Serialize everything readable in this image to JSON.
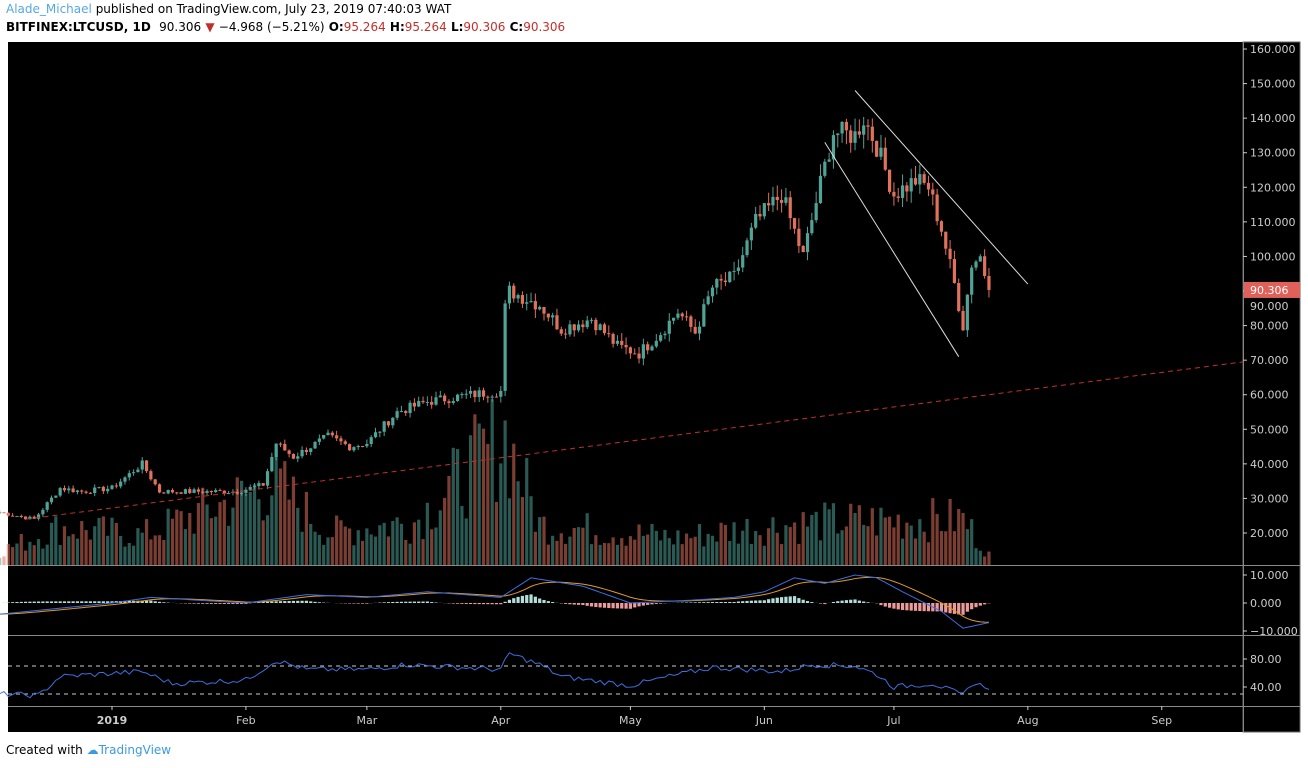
{
  "header": {
    "author": "Alade_Michael",
    "published": "published on TradingView.com, July 23, 2019 07:40:03 WAT",
    "symbol": "BITFINEX:LTCUSD, 1D",
    "last": "90.306",
    "change": "−4.968 (−5.21%)",
    "o_label": "O:",
    "o": "95.264",
    "h_label": "H:",
    "h": "95.264",
    "l_label": "L:",
    "l": "90.306",
    "c_label": "C:",
    "c": "90.306"
  },
  "footer": {
    "created_with": "Created with",
    "brand": "TradingView"
  },
  "colors": {
    "up": "#4fa397",
    "down": "#e0715d",
    "background": "#000000",
    "macd": "#3d6fe0",
    "signal": "#e09a2b",
    "rsi": "#3d6fe0",
    "trend": "#c0302b"
  },
  "chart_data": {
    "type": "candlestick",
    "price_axis": {
      "ticks": [
        "160.000",
        "150.000",
        "140.000",
        "130.000",
        "120.000",
        "110.000",
        "100.000",
        "90.000",
        "80.000",
        "70.000",
        "60.000",
        "50.000",
        "40.000",
        "30.000",
        "20.000"
      ],
      "range": [
        20,
        160
      ],
      "last_label": "90.306"
    },
    "time_axis": {
      "ticks": [
        "2019",
        "Feb",
        "Mar",
        "Apr",
        "May",
        "Jun",
        "Jul",
        "Aug",
        "Sep"
      ]
    },
    "close_keypoints": [
      [
        "2018-12-06",
        26
      ],
      [
        "2018-12-14",
        24
      ],
      [
        "2018-12-20",
        33
      ],
      [
        "2018-12-25",
        32
      ],
      [
        "2019-01-01",
        33
      ],
      [
        "2019-01-08",
        40
      ],
      [
        "2019-01-12",
        32
      ],
      [
        "2019-01-20",
        32
      ],
      [
        "2019-01-30",
        32
      ],
      [
        "2019-02-05",
        34
      ],
      [
        "2019-02-08",
        46
      ],
      [
        "2019-02-12",
        42
      ],
      [
        "2019-02-20",
        48
      ],
      [
        "2019-02-25",
        45
      ],
      [
        "2019-03-01",
        46
      ],
      [
        "2019-03-08",
        55
      ],
      [
        "2019-03-15",
        58
      ],
      [
        "2019-03-20",
        59
      ],
      [
        "2019-03-25",
        60
      ],
      [
        "2019-04-01",
        61
      ],
      [
        "2019-04-02",
        85
      ],
      [
        "2019-04-03",
        90
      ],
      [
        "2019-04-10",
        86
      ],
      [
        "2019-04-15",
        79
      ],
      [
        "2019-04-22",
        82
      ],
      [
        "2019-04-28",
        74
      ],
      [
        "2019-05-03",
        72
      ],
      [
        "2019-05-08",
        78
      ],
      [
        "2019-05-12",
        84
      ],
      [
        "2019-05-16",
        78
      ],
      [
        "2019-05-20",
        91
      ],
      [
        "2019-05-25",
        94
      ],
      [
        "2019-05-30",
        110
      ],
      [
        "2019-06-05",
        118
      ],
      [
        "2019-06-10",
        100
      ],
      [
        "2019-06-14",
        121
      ],
      [
        "2019-06-17",
        136
      ],
      [
        "2019-06-22",
        135
      ],
      [
        "2019-06-24",
        140
      ],
      [
        "2019-06-27",
        132
      ],
      [
        "2019-07-01",
        118
      ],
      [
        "2019-07-06",
        122
      ],
      [
        "2019-07-09",
        120
      ],
      [
        "2019-07-12",
        108
      ],
      [
        "2019-07-15",
        92
      ],
      [
        "2019-07-17",
        80
      ],
      [
        "2019-07-19",
        98
      ],
      [
        "2019-07-21",
        100
      ],
      [
        "2019-07-23",
        90.306
      ]
    ],
    "volume_keypoints": [
      [
        "2018-12-06",
        5
      ],
      [
        "2018-12-20",
        14
      ],
      [
        "2019-01-08",
        11
      ],
      [
        "2019-02-08",
        30
      ],
      [
        "2019-02-20",
        12
      ],
      [
        "2019-03-12",
        16
      ],
      [
        "2019-04-02",
        48
      ],
      [
        "2019-04-10",
        15
      ],
      [
        "2019-05-12",
        10
      ],
      [
        "2019-05-30",
        14
      ],
      [
        "2019-06-17",
        16
      ],
      [
        "2019-07-17",
        17
      ],
      [
        "2019-07-23",
        4
      ]
    ],
    "trendlines": [
      {
        "style": "dashed",
        "from": [
          "2018-12-12",
          24
        ],
        "to": [
          "2019-09-30",
          69.5
        ]
      },
      {
        "style": "solid",
        "from": [
          "2019-06-22",
          148
        ],
        "to": [
          "2019-08-01",
          92
        ]
      },
      {
        "style": "solid",
        "from": [
          "2019-06-15",
          133
        ],
        "to": [
          "2019-07-16",
          71
        ]
      }
    ],
    "macd": {
      "ticks": [
        "10.000",
        "0.000",
        "−10.000"
      ],
      "range": [
        -10,
        10
      ],
      "keypoints": [
        [
          "2018-12-06",
          -4
        ],
        [
          "2019-01-01",
          0
        ],
        [
          "2019-01-10",
          2
        ],
        [
          "2019-02-01",
          0
        ],
        [
          "2019-02-15",
          3
        ],
        [
          "2019-03-01",
          2
        ],
        [
          "2019-03-15",
          4
        ],
        [
          "2019-04-01",
          2
        ],
        [
          "2019-04-08",
          9
        ],
        [
          "2019-04-20",
          6
        ],
        [
          "2019-05-01",
          0
        ],
        [
          "2019-05-15",
          1
        ],
        [
          "2019-05-25",
          2
        ],
        [
          "2019-06-01",
          4
        ],
        [
          "2019-06-08",
          9
        ],
        [
          "2019-06-15",
          7
        ],
        [
          "2019-06-22",
          10
        ],
        [
          "2019-06-27",
          9
        ],
        [
          "2019-07-03",
          4
        ],
        [
          "2019-07-12",
          -3
        ],
        [
          "2019-07-17",
          -9
        ],
        [
          "2019-07-23",
          -7
        ]
      ]
    },
    "rsi": {
      "ticks": [
        "80.00",
        "40.00"
      ],
      "bands": [
        70,
        30
      ],
      "keypoints": [
        [
          "2018-12-06",
          30
        ],
        [
          "2018-12-15",
          28
        ],
        [
          "2018-12-20",
          55
        ],
        [
          "2019-01-08",
          62
        ],
        [
          "2019-01-15",
          45
        ],
        [
          "2019-02-01",
          50
        ],
        [
          "2019-02-08",
          78
        ],
        [
          "2019-02-15",
          65
        ],
        [
          "2019-03-01",
          65
        ],
        [
          "2019-03-10",
          72
        ],
        [
          "2019-04-01",
          65
        ],
        [
          "2019-04-03",
          88
        ],
        [
          "2019-04-10",
          72
        ],
        [
          "2019-04-15",
          55
        ],
        [
          "2019-05-01",
          42
        ],
        [
          "2019-05-10",
          55
        ],
        [
          "2019-05-20",
          68
        ],
        [
          "2019-06-05",
          62
        ],
        [
          "2019-06-12",
          72
        ],
        [
          "2019-06-22",
          70
        ],
        [
          "2019-06-27",
          58
        ],
        [
          "2019-07-01",
          40
        ],
        [
          "2019-07-10",
          45
        ],
        [
          "2019-07-17",
          28
        ],
        [
          "2019-07-19",
          45
        ],
        [
          "2019-07-23",
          40
        ]
      ]
    }
  }
}
